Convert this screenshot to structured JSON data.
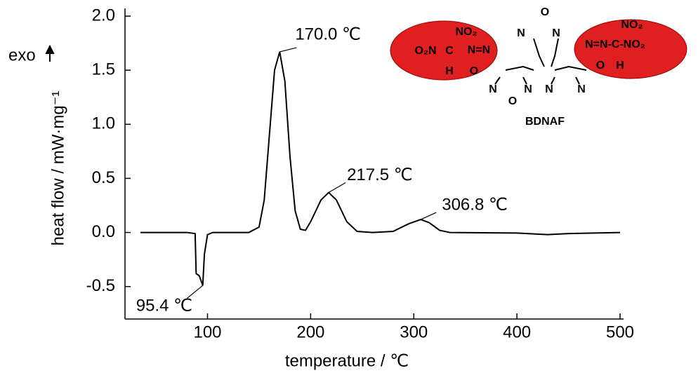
{
  "chart_data": {
    "type": "line",
    "x_label": "temperature / ℃",
    "y_label": "heat flow / mW·mg⁻¹",
    "exo_label": "exo",
    "color": "#000000",
    "x": [
      35,
      80,
      88,
      89,
      92,
      95.4,
      97,
      100,
      105,
      140,
      150,
      155,
      160,
      165,
      170,
      175,
      180,
      185,
      190,
      195,
      200,
      210,
      217.5,
      225,
      235,
      245,
      260,
      280,
      295,
      306.8,
      315,
      325,
      335,
      400,
      430,
      450,
      500
    ],
    "values": [
      0,
      0,
      -0.01,
      -0.38,
      -0.4,
      -0.49,
      -0.2,
      -0.02,
      0,
      0,
      0.05,
      0.3,
      0.9,
      1.5,
      1.67,
      1.4,
      0.7,
      0.2,
      0.03,
      0.02,
      0.1,
      0.3,
      0.37,
      0.3,
      0.1,
      0.01,
      0,
      0.01,
      0.08,
      0.12,
      0.09,
      0.02,
      0,
      -0.005,
      -0.02,
      -0.01,
      0
    ],
    "xlim": [
      20,
      500
    ],
    "ylim": [
      -0.8,
      2.0
    ],
    "xticks": [
      100,
      200,
      300,
      400,
      500
    ],
    "yticks": [
      -0.5,
      {
        "value": 0,
        "label": "0.0"
      },
      0.5,
      {
        "value": 1,
        "label": "1.0"
      },
      1.5,
      {
        "value": 2,
        "label": "2.0"
      }
    ],
    "annotations": [
      {
        "text": "95.4 ℃",
        "x": 95.4,
        "y": -0.49
      },
      {
        "text": "170.0 ℃",
        "x": 170,
        "y": 1.67
      },
      {
        "text": "217.5 ℃",
        "x": 217.5,
        "y": 0.37
      },
      {
        "text": "306.8 ℃",
        "x": 306.8,
        "y": 0.12
      }
    ],
    "inset": {
      "name": "BDNAF",
      "labels": [
        "NO₂",
        "O₂N",
        "C",
        "N=N",
        "H",
        "O",
        "O",
        "N",
        "N",
        "N",
        "O",
        "N",
        "N",
        "N",
        "NO₂",
        "N=N-C-NO₂",
        "O",
        "H"
      ]
    }
  }
}
